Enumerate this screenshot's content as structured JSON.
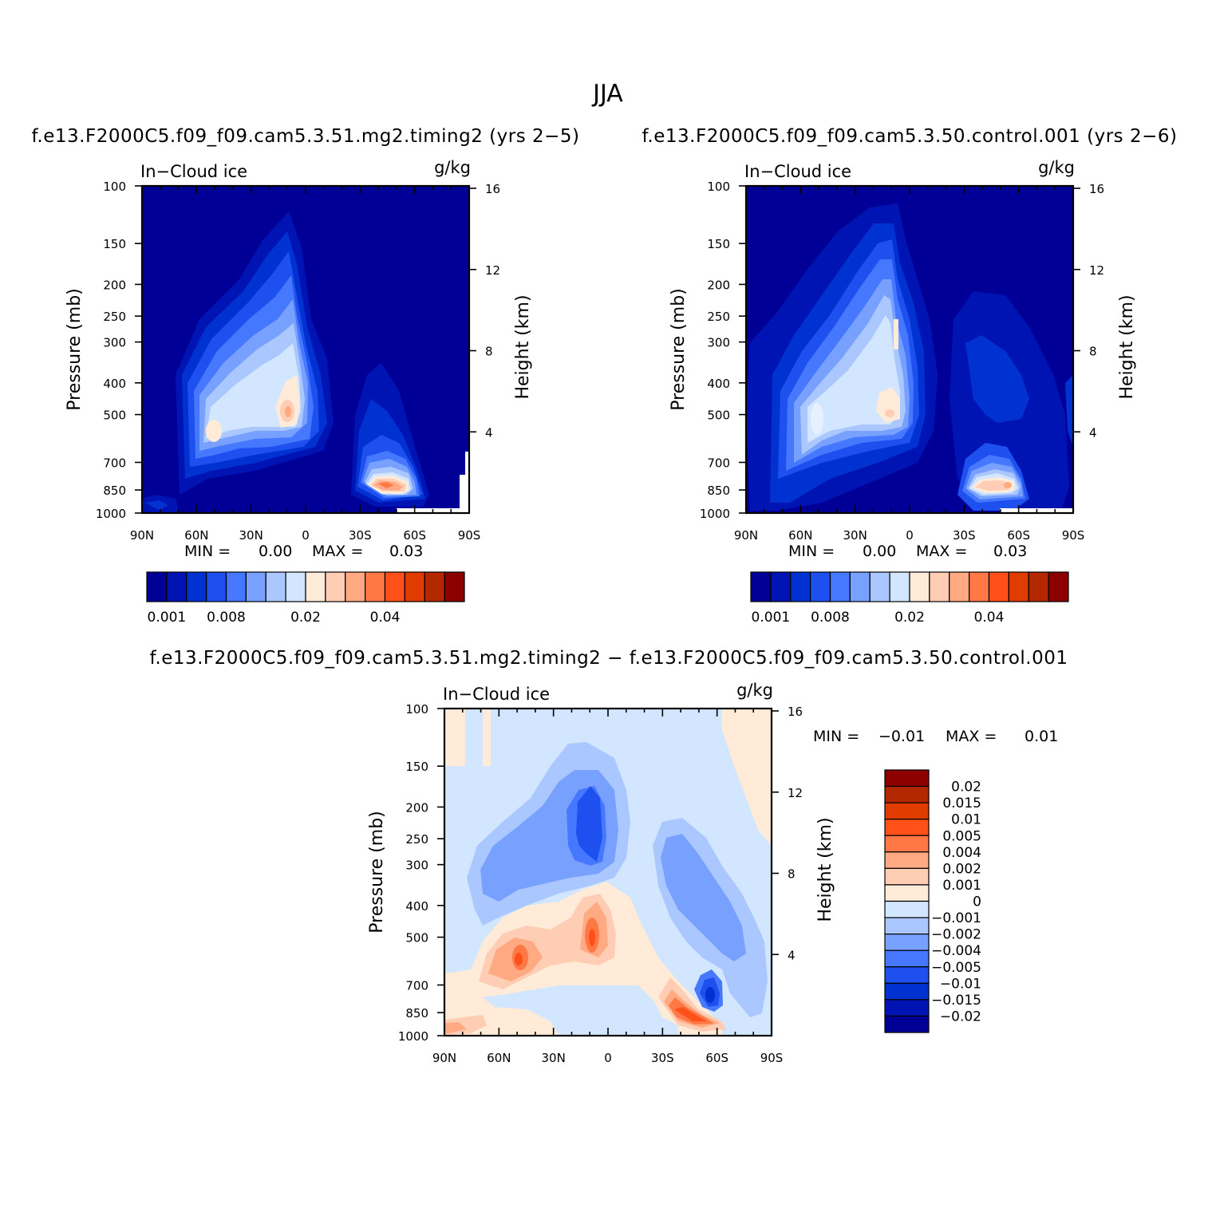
{
  "figure": {
    "title": "JJA",
    "subtitle_left": "f.e13.F2000C5.f09_f09.cam5.3.51.mg2.timing2 (yrs 2−5)",
    "subtitle_right": "f.e13.F2000C5.f09_f09.cam5.3.50.control.001 (yrs 2−6)",
    "diff_title": "f.e13.F2000C5.f09_f09.cam5.3.51.mg2.timing2 − f.e13.F2000C5.f09_f09.cam5.3.50.control.001"
  },
  "chart_data": [
    {
      "type": "heatmap",
      "variable": "In−Cloud ice",
      "units": "g/kg",
      "xlabel": "",
      "ylabel": "Pressure (mb)",
      "ylabel_right": "Height (km)",
      "x_ticks": [
        "90N",
        "60N",
        "30N",
        "0",
        "30S",
        "60S",
        "90S"
      ],
      "x_range": [
        90,
        -90
      ],
      "y_ticks": [
        100,
        150,
        200,
        250,
        300,
        400,
        500,
        700,
        850,
        1000
      ],
      "y_range": [
        100,
        1000
      ],
      "y_scale": "log",
      "height_ticks": [
        16,
        12,
        8,
        4
      ],
      "min_label": "MIN =",
      "min_value": "0.00",
      "max_label": "MAX =",
      "max_value": "0.03",
      "colorbar_orientation": "horizontal",
      "colorbar_labels": [
        "0.001",
        "0.008",
        "0.02",
        "0.04"
      ],
      "colors": [
        "#000096",
        "#0014b4",
        "#0032d2",
        "#1e50f0",
        "#4678ff",
        "#78a0ff",
        "#aac8ff",
        "#d2e6ff",
        "#ffebd7",
        "#ffcdb4",
        "#ffaa82",
        "#ff7846",
        "#ff5019",
        "#e13c00",
        "#b42800",
        "#8c0000"
      ],
      "features": [
        {
          "lat": 5,
          "p": 450,
          "value": 0.02,
          "note": "upper tropical ice maximum"
        },
        {
          "lat": 52,
          "p": 550,
          "value": 0.01
        },
        {
          "lat": -48,
          "p": 810,
          "value": 0.03,
          "note": "southern mid-latitude low-level maximum"
        }
      ]
    },
    {
      "type": "heatmap",
      "variable": "In−Cloud ice",
      "units": "g/kg",
      "xlabel": "",
      "ylabel": "Pressure (mb)",
      "ylabel_right": "Height (km)",
      "x_ticks": [
        "90N",
        "60N",
        "30N",
        "0",
        "30S",
        "60S",
        "90S"
      ],
      "x_range": [
        90,
        -90
      ],
      "y_ticks": [
        100,
        150,
        200,
        250,
        300,
        400,
        500,
        700,
        850,
        1000
      ],
      "y_range": [
        100,
        1000
      ],
      "y_scale": "log",
      "height_ticks": [
        16,
        12,
        8,
        4
      ],
      "min_label": "MIN =",
      "min_value": "0.00",
      "max_label": "MAX =",
      "max_value": "0.03",
      "colorbar_orientation": "horizontal",
      "colorbar_labels": [
        "0.001",
        "0.008",
        "0.02",
        "0.04"
      ],
      "colors": [
        "#000096",
        "#0014b4",
        "#0032d2",
        "#1e50f0",
        "#4678ff",
        "#78a0ff",
        "#aac8ff",
        "#d2e6ff",
        "#ffebd7",
        "#ffcdb4",
        "#ffaa82",
        "#ff7846",
        "#ff5019",
        "#e13c00",
        "#b42800",
        "#8c0000"
      ],
      "features": [
        {
          "lat": 8,
          "p": 380,
          "value": 0.015,
          "note": "tropical column"
        },
        {
          "lat": 52,
          "p": 520,
          "value": 0.008
        },
        {
          "lat": -48,
          "p": 810,
          "value": 0.03
        }
      ]
    },
    {
      "type": "heatmap",
      "variable": "In−Cloud ice",
      "units": "g/kg",
      "xlabel": "",
      "ylabel": "Pressure (mb)",
      "ylabel_right": "Height (km)",
      "x_ticks": [
        "90N",
        "60N",
        "30N",
        "0",
        "30S",
        "60S",
        "90S"
      ],
      "x_range": [
        90,
        -90
      ],
      "y_ticks": [
        100,
        150,
        200,
        250,
        300,
        400,
        500,
        700,
        850,
        1000
      ],
      "y_range": [
        100,
        1000
      ],
      "y_scale": "log",
      "height_ticks": [
        16,
        12,
        8,
        4
      ],
      "min_label": "MIN =",
      "min_value": "−0.01",
      "max_label": "MAX =",
      "max_value": "0.01",
      "colorbar_orientation": "vertical",
      "colorbar_labels": [
        "0.02",
        "0.015",
        "0.01",
        "0.005",
        "0.004",
        "0.002",
        "0.001",
        "0",
        "−0.001",
        "−0.002",
        "−0.004",
        "−0.005",
        "−0.01",
        "−0.015",
        "−0.02"
      ],
      "colors": [
        "#8c0000",
        "#b42800",
        "#e13c00",
        "#ff5019",
        "#ff7846",
        "#ffaa82",
        "#ffcdb4",
        "#ffebd7",
        "#d2e6ff",
        "#aac8ff",
        "#78a0ff",
        "#4678ff",
        "#1e50f0",
        "#0032d2",
        "#0014b4",
        "#000096"
      ],
      "features": [
        {
          "lat": 8,
          "p": 240,
          "value": -0.01,
          "note": "upper tropical decrease"
        },
        {
          "lat": 8,
          "p": 500,
          "value": 0.01
        },
        {
          "lat": 48,
          "p": 560,
          "value": 0.01
        },
        {
          "lat": -58,
          "p": 780,
          "value": -0.01
        },
        {
          "lat": -45,
          "p": 840,
          "value": 0.01
        }
      ]
    }
  ]
}
